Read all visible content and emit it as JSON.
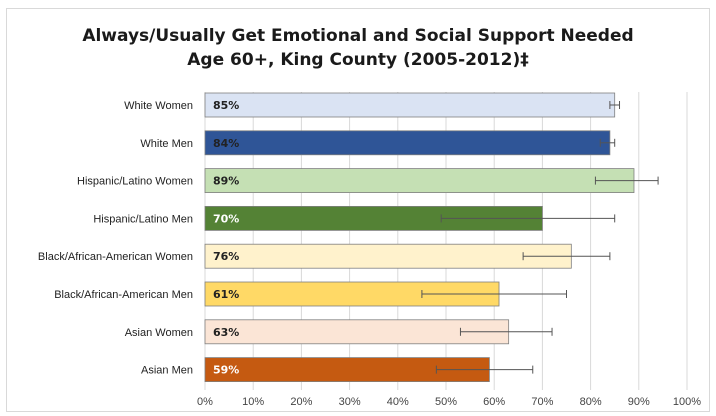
{
  "chart_data": {
    "type": "bar",
    "orientation": "horizontal",
    "title": [
      "Always/Usually Get Emotional and Social Support Needed",
      "Age 60+, King County (2005-2012)‡"
    ],
    "categories": [
      "White Women",
      "White Men",
      "Hispanic/Latino Women",
      "Hispanic/Latino Men",
      "Black/African-American Women",
      "Black/African-American Men",
      "Asian Women",
      "Asian Men"
    ],
    "values": [
      85,
      84,
      89,
      70,
      76,
      61,
      63,
      59
    ],
    "data_labels": [
      "85%",
      "84%",
      "89%",
      "70%",
      "76%",
      "61%",
      "63%",
      "59%"
    ],
    "error_low": [
      84,
      82,
      81,
      49,
      66,
      45,
      53,
      48
    ],
    "error_high": [
      86,
      85,
      94,
      85,
      84,
      75,
      72,
      68
    ],
    "colors": [
      "#dae3f3",
      "#2f5597",
      "#c5e0b4",
      "#548235",
      "#fff2cc",
      "#ffd966",
      "#fbe5d6",
      "#c55a11"
    ],
    "label_colors": [
      "#222222",
      "#222222",
      "#222222",
      "#ffffff",
      "#222222",
      "#222222",
      "#222222",
      "#ffffff"
    ],
    "bar_border_color": "#7f7f7f",
    "xlim": [
      0,
      100
    ],
    "x_ticks": [
      0,
      10,
      20,
      30,
      40,
      50,
      60,
      70,
      80,
      90,
      100
    ],
    "x_tick_labels": [
      "0%",
      "10%",
      "20%",
      "30%",
      "40%",
      "50%",
      "60%",
      "70%",
      "80%",
      "90%",
      "100%"
    ],
    "grid": true,
    "gridline_color": "#d9d9d9",
    "legend": false
  }
}
